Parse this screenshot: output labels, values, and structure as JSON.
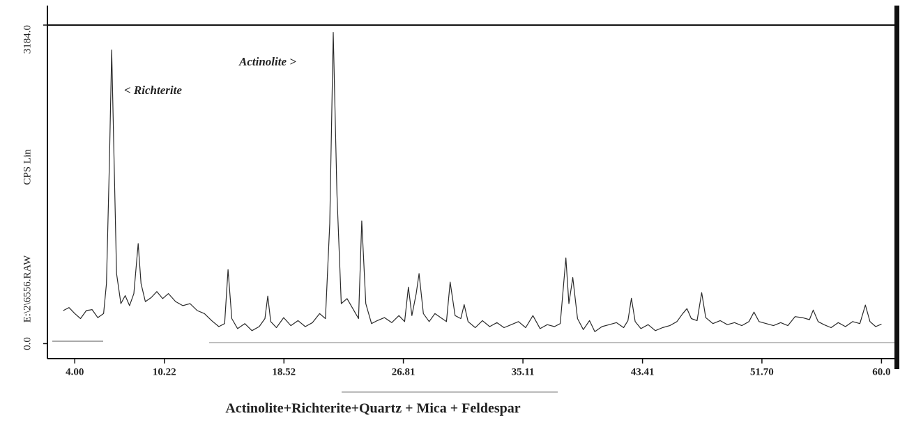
{
  "chart_data": {
    "type": "line",
    "y_label": "CPS Lin",
    "file_label": "E:\\2\\6556.RAW",
    "annotations": [
      "< Richterite",
      "Actinolite >"
    ],
    "caption": "Actinolite+Richterite+Quartz + Mica + Feldespar",
    "color": "#2a2a2a",
    "xlim": [
      2.1,
      60.9
    ],
    "ylim": [
      -150,
      3184
    ],
    "xticks": [
      {
        "value": 4,
        "label": "4.00"
      },
      10.22,
      18.52,
      26.81,
      35.11,
      43.41,
      {
        "value": 51.7,
        "label": "51.70"
      },
      {
        "value": 60,
        "label": "60.0"
      }
    ],
    "yticks": [
      {
        "value": 0,
        "label": "0.0"
      },
      {
        "value": 3184,
        "label": "3184.0"
      }
    ],
    "x": [
      3.2,
      3.6,
      4.0,
      4.4,
      4.8,
      5.2,
      5.6,
      6.0,
      6.2,
      6.4,
      6.56,
      6.7,
      6.9,
      7.2,
      7.5,
      7.8,
      8.1,
      8.4,
      8.6,
      8.9,
      9.3,
      9.7,
      10.1,
      10.5,
      11.0,
      11.5,
      12.0,
      12.5,
      13.0,
      13.5,
      14.0,
      14.4,
      14.64,
      14.9,
      15.3,
      15.8,
      16.3,
      16.8,
      17.2,
      17.4,
      17.6,
      18.0,
      18.5,
      19.0,
      19.5,
      20.0,
      20.5,
      21.0,
      21.4,
      21.7,
      21.94,
      22.2,
      22.5,
      22.9,
      23.3,
      23.7,
      23.92,
      24.2,
      24.6,
      25.0,
      25.5,
      26.0,
      26.5,
      26.9,
      27.16,
      27.4,
      27.7,
      27.9,
      28.2,
      28.6,
      29.0,
      29.5,
      29.8,
      30.06,
      30.4,
      30.8,
      31.03,
      31.3,
      31.8,
      32.3,
      32.8,
      33.3,
      33.8,
      34.3,
      34.8,
      35.3,
      35.8,
      36.3,
      36.8,
      37.3,
      37.7,
      38.09,
      38.3,
      38.57,
      38.9,
      39.3,
      39.73,
      40.1,
      40.6,
      41.1,
      41.6,
      42.1,
      42.4,
      42.64,
      42.9,
      43.3,
      43.8,
      44.3,
      44.8,
      45.3,
      45.8,
      46.2,
      46.5,
      46.8,
      47.2,
      47.52,
      47.8,
      48.3,
      48.8,
      49.3,
      49.8,
      50.3,
      50.8,
      51.15,
      51.5,
      52.0,
      52.5,
      53.0,
      53.5,
      54.0,
      54.5,
      55.0,
      55.26,
      55.6,
      56.0,
      56.5,
      57.0,
      57.5,
      58.0,
      58.5,
      58.88,
      59.2,
      59.6,
      60.0
    ],
    "values": [
      330,
      360,
      300,
      250,
      330,
      340,
      260,
      300,
      600,
      1800,
      2935,
      2000,
      700,
      400,
      480,
      380,
      500,
      1000,
      600,
      420,
      460,
      520,
      450,
      500,
      420,
      380,
      400,
      330,
      300,
      230,
      170,
      200,
      740,
      250,
      150,
      200,
      130,
      170,
      250,
      475,
      220,
      160,
      260,
      180,
      230,
      170,
      210,
      300,
      250,
      1200,
      3110,
      1500,
      400,
      450,
      350,
      250,
      1227,
      400,
      200,
      230,
      260,
      210,
      280,
      220,
      565,
      280,
      500,
      700,
      300,
      220,
      300,
      250,
      220,
      615,
      280,
      250,
      390,
      220,
      160,
      230,
      170,
      210,
      160,
      190,
      220,
      160,
      280,
      150,
      190,
      170,
      200,
      857,
      400,
      660,
      250,
      140,
      230,
      120,
      170,
      190,
      210,
      160,
      230,
      453,
      220,
      150,
      190,
      130,
      160,
      180,
      220,
      300,
      350,
      250,
      230,
      510,
      260,
      200,
      230,
      190,
      210,
      180,
      220,
      315,
      220,
      200,
      180,
      210,
      180,
      270,
      260,
      240,
      335,
      220,
      190,
      160,
      210,
      170,
      220,
      200,
      385,
      220,
      170,
      195
    ]
  }
}
